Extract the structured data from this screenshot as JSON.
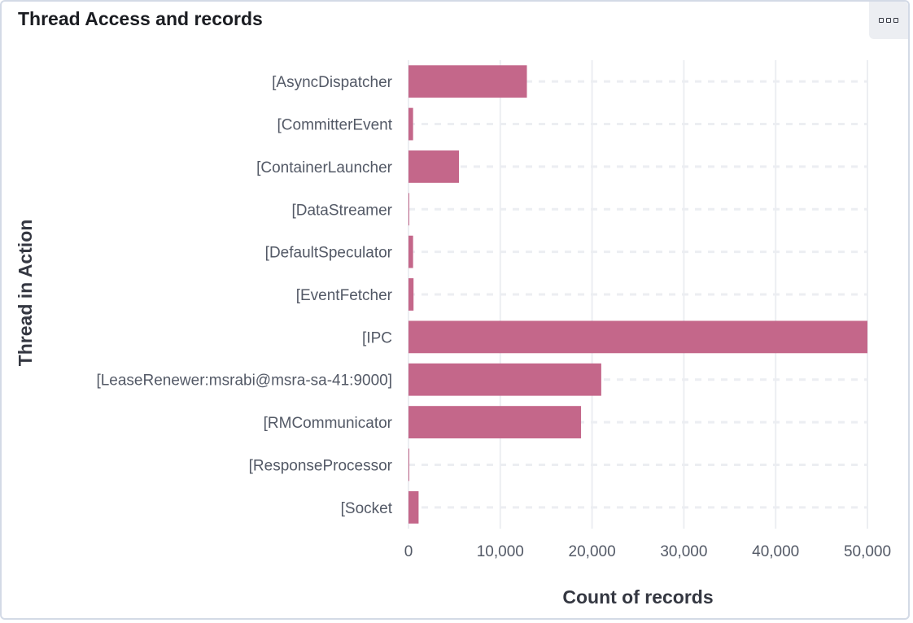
{
  "panel": {
    "title": "Thread Access and records",
    "options_icon": "three-squares-icon"
  },
  "chart_data": {
    "type": "bar",
    "orientation": "horizontal",
    "categories": [
      "[AsyncDispatcher",
      "[CommitterEvent",
      "[ContainerLauncher",
      "[DataStreamer",
      "[DefaultSpeculator",
      "[EventFetcher",
      "[IPC",
      "[LeaseRenewer:msrabi@msra-sa-41:9000]",
      "[RMCommunicator",
      "[ResponseProcessor",
      "[Socket"
    ],
    "values": [
      12900,
      500,
      5500,
      80,
      500,
      550,
      50000,
      21000,
      18800,
      60,
      1100
    ],
    "xlabel": "Count of records",
    "ylabel": "Thread in Action",
    "xlim": [
      0,
      50000
    ],
    "xticks": [
      0,
      10000,
      20000,
      30000,
      40000,
      50000
    ],
    "xtick_labels": [
      "0",
      "10,000",
      "20,000",
      "30,000",
      "40,000",
      "50,000"
    ],
    "grid": true,
    "bar_color": "#c4678a",
    "grid_color": "#eceef2"
  }
}
